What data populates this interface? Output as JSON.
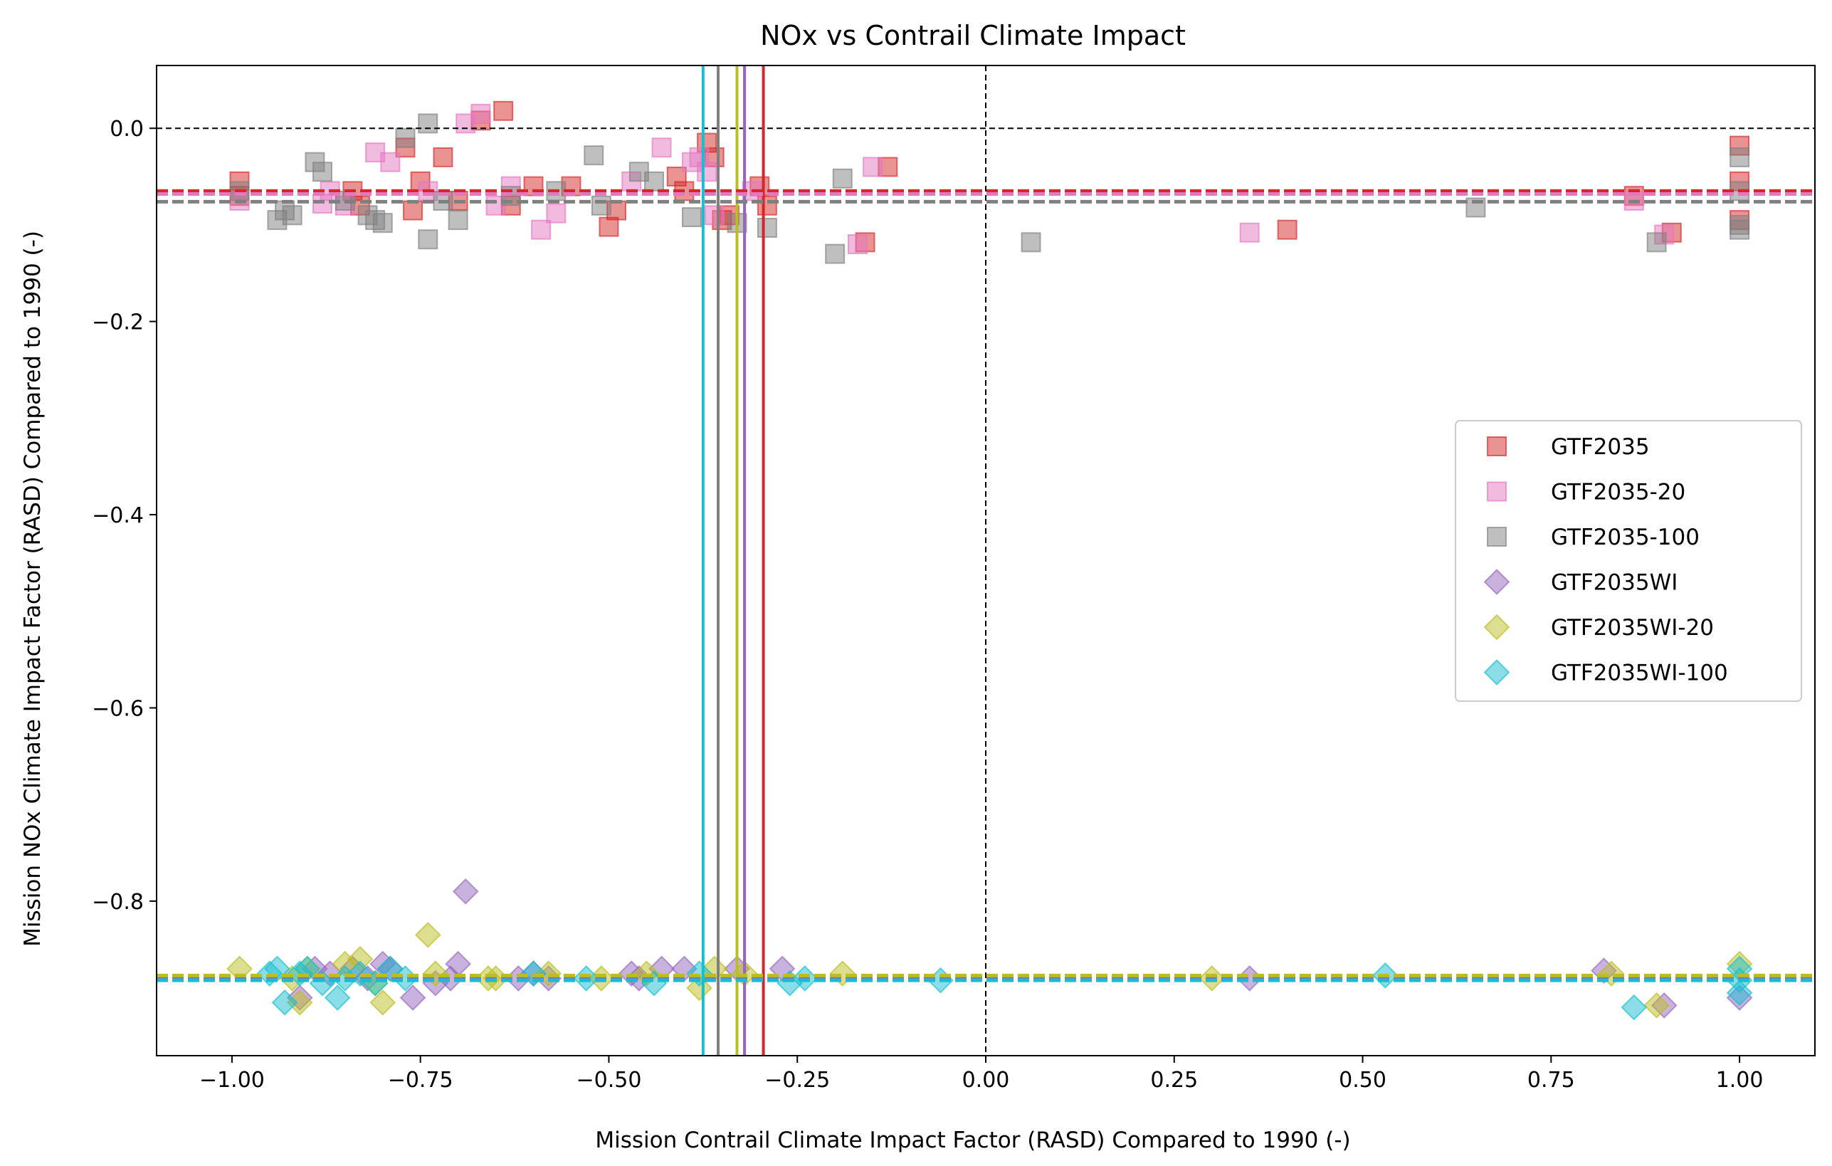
{
  "chart_data": {
    "type": "scatter",
    "title": "NOx vs Contrail Climate Impact",
    "xlabel": "Mission Contrail Climate Impact Factor (RASD) Compared to 1990 (-)",
    "ylabel": "Mission NOx Climate Impact Factor (RASD) Compared to 1990 (-)",
    "xlim": [
      -1.1,
      1.1
    ],
    "ylim": [
      -0.96,
      0.065
    ],
    "xticks": [
      -1.0,
      -0.75,
      -0.5,
      -0.25,
      0.0,
      0.25,
      0.5,
      0.75,
      1.0
    ],
    "xtick_labels": [
      "−1.00",
      "−0.75",
      "−0.50",
      "−0.25",
      "0.00",
      "0.25",
      "0.50",
      "0.75",
      "1.00"
    ],
    "yticks": [
      0.0,
      -0.2,
      -0.4,
      -0.6,
      -0.8
    ],
    "ytick_labels": [
      "0.0",
      "−0.2",
      "−0.4",
      "−0.6",
      "−0.8"
    ],
    "grid": false,
    "legend_position": "center-right",
    "reference_lines": {
      "x": 0.0,
      "y": 0.0,
      "color": "#000000",
      "style": "dashed"
    },
    "series": [
      {
        "name": "GTF2035",
        "marker": "square",
        "color": "#d62728",
        "mean_x": -0.295,
        "mean_y": -0.065,
        "points": [
          [
            -0.99,
            -0.055
          ],
          [
            -0.99,
            -0.07
          ],
          [
            -0.84,
            -0.065
          ],
          [
            -0.83,
            -0.08
          ],
          [
            -0.77,
            -0.02
          ],
          [
            -0.75,
            -0.055
          ],
          [
            -0.76,
            -0.085
          ],
          [
            -0.72,
            -0.03
          ],
          [
            -0.7,
            -0.075
          ],
          [
            -0.67,
            0.008
          ],
          [
            -0.64,
            0.018
          ],
          [
            -0.63,
            -0.08
          ],
          [
            -0.6,
            -0.06
          ],
          [
            -0.55,
            -0.06
          ],
          [
            -0.5,
            -0.102
          ],
          [
            -0.49,
            -0.085
          ],
          [
            -0.41,
            -0.05
          ],
          [
            -0.4,
            -0.065
          ],
          [
            -0.37,
            -0.015
          ],
          [
            -0.36,
            -0.03
          ],
          [
            -0.35,
            -0.095
          ],
          [
            -0.34,
            -0.09
          ],
          [
            -0.3,
            -0.06
          ],
          [
            -0.29,
            -0.08
          ],
          [
            -0.16,
            -0.118
          ],
          [
            -0.13,
            -0.04
          ],
          [
            0.4,
            -0.105
          ],
          [
            0.86,
            -0.07
          ],
          [
            0.91,
            -0.108
          ],
          [
            1.0,
            -0.018
          ],
          [
            1.0,
            -0.055
          ],
          [
            1.0,
            -0.095
          ]
        ]
      },
      {
        "name": "GTF2035-20",
        "marker": "square",
        "color": "#e377c2",
        "mean_x": -0.32,
        "mean_y": -0.068,
        "points": [
          [
            -0.99,
            -0.075
          ],
          [
            -0.88,
            -0.078
          ],
          [
            -0.87,
            -0.065
          ],
          [
            -0.85,
            -0.08
          ],
          [
            -0.81,
            -0.025
          ],
          [
            -0.79,
            -0.035
          ],
          [
            -0.74,
            -0.065
          ],
          [
            -0.69,
            0.005
          ],
          [
            -0.67,
            0.015
          ],
          [
            -0.65,
            -0.08
          ],
          [
            -0.63,
            -0.06
          ],
          [
            -0.59,
            -0.105
          ],
          [
            -0.57,
            -0.088
          ],
          [
            -0.47,
            -0.055
          ],
          [
            -0.43,
            -0.02
          ],
          [
            -0.39,
            -0.035
          ],
          [
            -0.38,
            -0.03
          ],
          [
            -0.37,
            -0.045
          ],
          [
            -0.36,
            -0.09
          ],
          [
            -0.31,
            -0.065
          ],
          [
            -0.17,
            -0.12
          ],
          [
            -0.15,
            -0.04
          ],
          [
            0.35,
            -0.108
          ],
          [
            0.86,
            -0.075
          ],
          [
            0.9,
            -0.11
          ]
        ]
      },
      {
        "name": "GTF2035-100",
        "marker": "square",
        "color": "#7f7f7f",
        "mean_x": -0.355,
        "mean_y": -0.076,
        "points": [
          [
            -0.99,
            -0.065
          ],
          [
            -0.94,
            -0.095
          ],
          [
            -0.93,
            -0.085
          ],
          [
            -0.92,
            -0.09
          ],
          [
            -0.89,
            -0.035
          ],
          [
            -0.88,
            -0.045
          ],
          [
            -0.85,
            -0.075
          ],
          [
            -0.82,
            -0.09
          ],
          [
            -0.81,
            -0.095
          ],
          [
            -0.8,
            -0.098
          ],
          [
            -0.77,
            -0.01
          ],
          [
            -0.74,
            0.005
          ],
          [
            -0.74,
            -0.115
          ],
          [
            -0.72,
            -0.075
          ],
          [
            -0.7,
            -0.095
          ],
          [
            -0.63,
            -0.07
          ],
          [
            -0.57,
            -0.065
          ],
          [
            -0.52,
            -0.028
          ],
          [
            -0.51,
            -0.08
          ],
          [
            -0.46,
            -0.045
          ],
          [
            -0.44,
            -0.055
          ],
          [
            -0.39,
            -0.092
          ],
          [
            -0.33,
            -0.098
          ],
          [
            -0.29,
            -0.103
          ],
          [
            -0.2,
            -0.13
          ],
          [
            -0.19,
            -0.052
          ],
          [
            0.06,
            -0.118
          ],
          [
            0.65,
            -0.082
          ],
          [
            0.89,
            -0.118
          ],
          [
            1.0,
            -0.03
          ],
          [
            1.0,
            -0.065
          ],
          [
            1.0,
            -0.1
          ],
          [
            1.0,
            -0.105
          ]
        ]
      },
      {
        "name": "GTF2035WI",
        "marker": "diamond",
        "color": "#9467bd",
        "mean_x": -0.32,
        "mean_y": -0.88,
        "points": [
          [
            -0.91,
            -0.9
          ],
          [
            -0.89,
            -0.87
          ],
          [
            -0.87,
            -0.875
          ],
          [
            -0.84,
            -0.87
          ],
          [
            -0.82,
            -0.88
          ],
          [
            -0.8,
            -0.865
          ],
          [
            -0.79,
            -0.87
          ],
          [
            -0.76,
            -0.9
          ],
          [
            -0.73,
            -0.885
          ],
          [
            -0.71,
            -0.88
          ],
          [
            -0.7,
            -0.865
          ],
          [
            -0.69,
            -0.79
          ],
          [
            -0.62,
            -0.88
          ],
          [
            -0.6,
            -0.875
          ],
          [
            -0.58,
            -0.88
          ],
          [
            -0.47,
            -0.875
          ],
          [
            -0.46,
            -0.88
          ],
          [
            -0.43,
            -0.87
          ],
          [
            -0.4,
            -0.87
          ],
          [
            -0.33,
            -0.87
          ],
          [
            -0.27,
            -0.87
          ],
          [
            0.35,
            -0.88
          ],
          [
            0.82,
            -0.872
          ],
          [
            0.9,
            -0.908
          ],
          [
            1.0,
            -0.9
          ]
        ]
      },
      {
        "name": "GTF2035WI-20",
        "marker": "diamond",
        "color": "#bcbd22",
        "mean_x": -0.33,
        "mean_y": -0.877,
        "points": [
          [
            -0.99,
            -0.87
          ],
          [
            -0.92,
            -0.88
          ],
          [
            -0.91,
            -0.905
          ],
          [
            -0.9,
            -0.87
          ],
          [
            -0.85,
            -0.865
          ],
          [
            -0.83,
            -0.86
          ],
          [
            -0.81,
            -0.885
          ],
          [
            -0.8,
            -0.905
          ],
          [
            -0.74,
            -0.835
          ],
          [
            -0.73,
            -0.875
          ],
          [
            -0.66,
            -0.88
          ],
          [
            -0.65,
            -0.88
          ],
          [
            -0.58,
            -0.875
          ],
          [
            -0.51,
            -0.88
          ],
          [
            -0.45,
            -0.875
          ],
          [
            -0.38,
            -0.89
          ],
          [
            -0.36,
            -0.87
          ],
          [
            -0.32,
            -0.875
          ],
          [
            -0.19,
            -0.875
          ],
          [
            0.3,
            -0.88
          ],
          [
            0.83,
            -0.875
          ],
          [
            0.89,
            -0.908
          ],
          [
            1.0,
            -0.865
          ]
        ]
      },
      {
        "name": "GTF2035WI-100",
        "marker": "diamond",
        "color": "#17becf",
        "mean_x": -0.375,
        "mean_y": -0.882,
        "points": [
          [
            -0.95,
            -0.875
          ],
          [
            -0.94,
            -0.87
          ],
          [
            -0.93,
            -0.905
          ],
          [
            -0.91,
            -0.875
          ],
          [
            -0.9,
            -0.87
          ],
          [
            -0.88,
            -0.885
          ],
          [
            -0.86,
            -0.9
          ],
          [
            -0.85,
            -0.88
          ],
          [
            -0.83,
            -0.875
          ],
          [
            -0.81,
            -0.885
          ],
          [
            -0.79,
            -0.87
          ],
          [
            -0.77,
            -0.88
          ],
          [
            -0.6,
            -0.875
          ],
          [
            -0.53,
            -0.88
          ],
          [
            -0.44,
            -0.885
          ],
          [
            -0.38,
            -0.875
          ],
          [
            -0.26,
            -0.885
          ],
          [
            -0.24,
            -0.88
          ],
          [
            -0.06,
            -0.882
          ],
          [
            0.53,
            -0.877
          ],
          [
            0.86,
            -0.91
          ],
          [
            1.0,
            -0.87
          ],
          [
            1.0,
            -0.882
          ],
          [
            1.0,
            -0.895
          ]
        ]
      }
    ]
  }
}
